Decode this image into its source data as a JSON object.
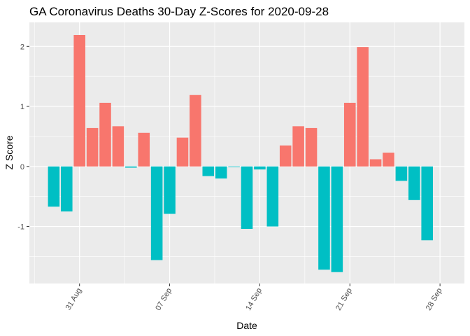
{
  "chart_data": {
    "type": "bar",
    "title": "GA Coronavirus Deaths 30-Day Z-Scores for 2020-09-28",
    "xlabel": "Date",
    "ylabel": "Z Score",
    "ylim": [
      -1.95,
      2.4
    ],
    "yticks": [
      -1,
      0,
      1,
      2
    ],
    "xtick_labels": [
      "31 Aug",
      "07 Sep",
      "14 Sep",
      "21 Sep",
      "28 Sep"
    ],
    "xtick_positions": [
      "2020-08-31",
      "2020-09-07",
      "2020-09-14",
      "2020-09-21",
      "2020-09-28"
    ],
    "grid": true,
    "legend": "none",
    "colors": {
      "positive": "#F8766D",
      "negative": "#00BFC4",
      "panel": "#EBEBEB",
      "grid": "#FFFFFF"
    },
    "dates": [
      "2020-08-29",
      "2020-08-30",
      "2020-08-31",
      "2020-09-01",
      "2020-09-02",
      "2020-09-03",
      "2020-09-04",
      "2020-09-05",
      "2020-09-06",
      "2020-09-07",
      "2020-09-08",
      "2020-09-09",
      "2020-09-10",
      "2020-09-11",
      "2020-09-12",
      "2020-09-13",
      "2020-09-14",
      "2020-09-15",
      "2020-09-16",
      "2020-09-17",
      "2020-09-18",
      "2020-09-19",
      "2020-09-20",
      "2020-09-21",
      "2020-09-22",
      "2020-09-23",
      "2020-09-24",
      "2020-09-25",
      "2020-09-26",
      "2020-09-27",
      "2020-09-28"
    ],
    "values": [
      -0.67,
      -0.75,
      2.19,
      0.64,
      1.06,
      0.67,
      -0.02,
      0.56,
      -1.56,
      -0.79,
      0.48,
      1.19,
      -0.16,
      -0.2,
      -0.01,
      -1.04,
      -0.05,
      -1.0,
      0.35,
      0.67,
      0.64,
      -1.72,
      -1.76,
      1.06,
      1.99,
      0.12,
      0.23,
      -0.24,
      -0.56,
      -1.23,
      -0.0
    ]
  }
}
